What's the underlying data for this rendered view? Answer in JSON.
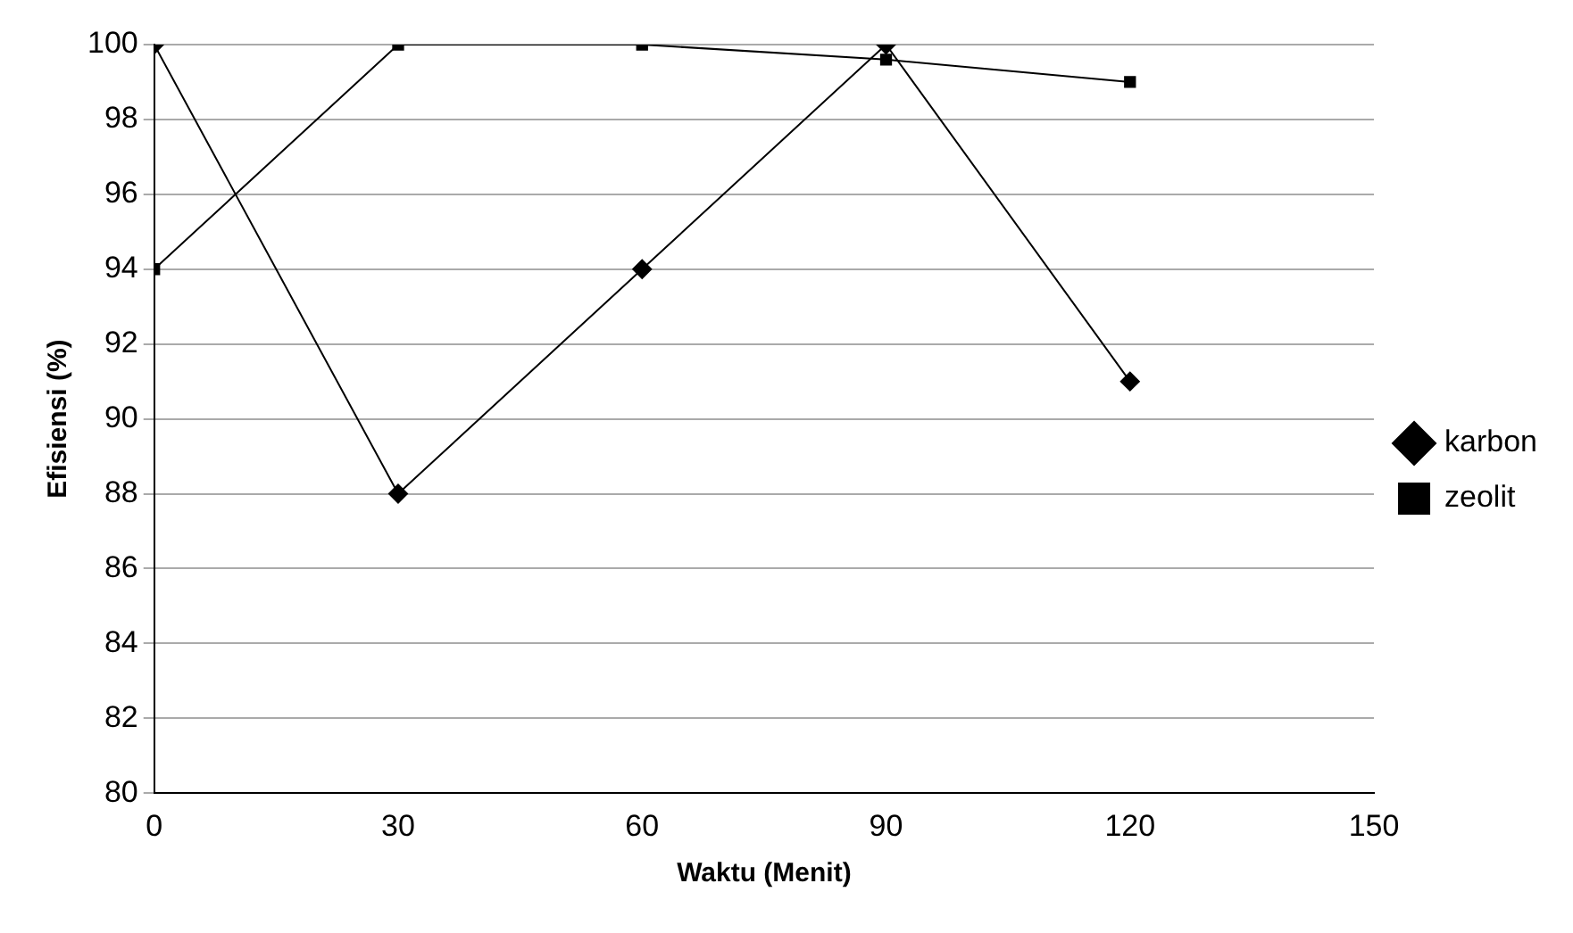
{
  "chart_data": {
    "type": "line",
    "xlabel": "Waktu (Menit)",
    "ylabel": "Efisiensi (%)",
    "x": [
      0,
      30,
      60,
      90,
      120
    ],
    "series": [
      {
        "name": "karbon",
        "color": "#000000",
        "marker": "diamond",
        "values": [
          100,
          88,
          94,
          100,
          91
        ]
      },
      {
        "name": "zeolit",
        "color": "#000000",
        "marker": "square",
        "values": [
          94,
          100,
          100,
          99.6,
          99
        ]
      }
    ],
    "xlim": [
      0,
      150
    ],
    "xticks": [
      0,
      30,
      60,
      90,
      120,
      150
    ],
    "ylim": [
      80,
      100
    ],
    "yticks": [
      80,
      82,
      84,
      86,
      88,
      90,
      92,
      94,
      96,
      98,
      100
    ],
    "grid": "y",
    "legend": "right",
    "line_style": "solid"
  }
}
